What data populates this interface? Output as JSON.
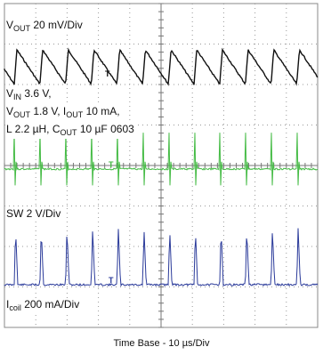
{
  "chart_data": {
    "type": "line",
    "title": "",
    "xlabel": "Time Base - 10 µs/Div",
    "time_per_div_us": 10,
    "divisions": {
      "x": 10,
      "y": 8
    },
    "grid": true,
    "annotations": {
      "vout_scale": {
        "pre": "V",
        "sub": "OUT",
        "post": " 20 mV/Div"
      },
      "vin": {
        "pre": "V",
        "sub": "IN",
        "post": " 3.6 V,"
      },
      "vout_iout": {
        "a": "V",
        "a_sub": "OUT",
        "b": " 1.8 V, I",
        "b_sub": "OUT",
        "c": " 10 mA,"
      },
      "l_cout": {
        "a": "L  2.2 µH, C",
        "a_sub": "OUT",
        "b": " 10 µF 0603"
      },
      "sw_scale": "SW 2 V/Div",
      "icoil_scale": {
        "pre": "I",
        "sub": "coil",
        "post": " 200 mA/Div"
      }
    },
    "series": [
      {
        "name": "VOUT",
        "color": "#111111",
        "waveform": "sawtooth",
        "period_div": 0.82,
        "volts_per_div": "20 mV",
        "ripple_div": 0.85
      },
      {
        "name": "SW",
        "color": "#44bb44",
        "waveform": "pulse",
        "period_div": 0.82,
        "volts_per_div": "2 V",
        "pulse_div": 0.9
      },
      {
        "name": "Icoil",
        "color": "#2a3a9a",
        "waveform": "triangle-pulse",
        "period_div": 0.82,
        "amps_per_div": "200 mA",
        "peak_div": 1.4
      }
    ]
  }
}
